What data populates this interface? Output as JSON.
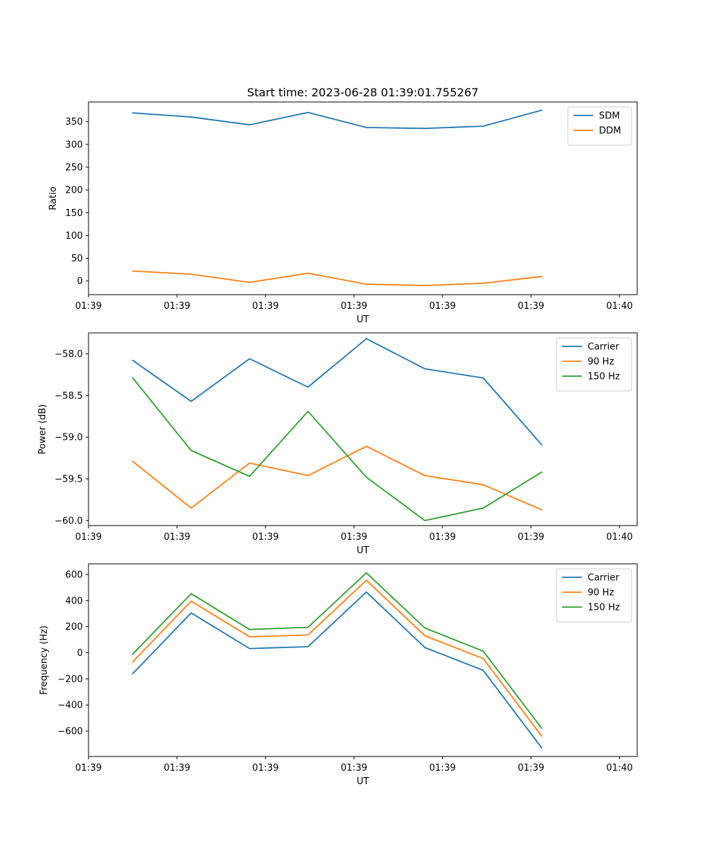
{
  "title": "Start time: 2023-06-28 01:39:01.755267",
  "colors": {
    "blue": "#1f77b4",
    "orange": "#ff7f0e",
    "green": "#2ca02c"
  },
  "chart_data": [
    {
      "type": "line",
      "xlabel": "UT",
      "ylabel": "Ratio",
      "x_tick_labels": [
        "01:39",
        "01:39",
        "01:39",
        "01:39",
        "01:39",
        "01:39",
        "01:40"
      ],
      "xlim": [
        0,
        6.2
      ],
      "ylim": [
        -30,
        393
      ],
      "y_ticks": [
        0,
        50,
        100,
        150,
        200,
        250,
        300,
        350
      ],
      "y_tick_labels": [
        "0",
        "50",
        "100",
        "150",
        "200",
        "250",
        "300",
        "350"
      ],
      "legend": "top-right",
      "x": [
        0.5,
        1.16,
        1.82,
        2.48,
        3.14,
        3.8,
        4.46,
        5.12
      ],
      "series": [
        {
          "name": "SDM",
          "color": "#1f77b4",
          "values": [
            369,
            360,
            343,
            370,
            337,
            335,
            340,
            375
          ]
        },
        {
          "name": "DDM",
          "color": "#ff7f0e",
          "values": [
            22,
            15,
            -3,
            17,
            -7,
            -10,
            -5,
            10
          ]
        }
      ]
    },
    {
      "type": "line",
      "xlabel": "UT",
      "ylabel": "Power (dB)",
      "x_tick_labels": [
        "01:39",
        "01:39",
        "01:39",
        "01:39",
        "01:39",
        "01:39",
        "01:40"
      ],
      "xlim": [
        0,
        6.2
      ],
      "ylim": [
        -60.06,
        -57.75
      ],
      "y_ticks": [
        -60.0,
        -59.5,
        -59.0,
        -58.5,
        -58.0
      ],
      "y_tick_labels": [
        "−60.0",
        "−59.5",
        "−59.0",
        "−58.5",
        "−58.0"
      ],
      "legend": "top-right",
      "x": [
        0.5,
        1.16,
        1.82,
        2.48,
        3.14,
        3.8,
        4.46,
        5.12
      ],
      "series": [
        {
          "name": "Carrier",
          "color": "#1f77b4",
          "values": [
            -58.08,
            -58.57,
            -58.06,
            -58.4,
            -57.82,
            -58.18,
            -58.29,
            -59.09
          ]
        },
        {
          "name": "90 Hz",
          "color": "#ff7f0e",
          "values": [
            -59.29,
            -59.85,
            -59.31,
            -59.46,
            -59.11,
            -59.46,
            -59.57,
            -59.87
          ]
        },
        {
          "name": "150 Hz",
          "color": "#2ca02c",
          "values": [
            -58.29,
            -59.16,
            -59.47,
            -58.69,
            -59.48,
            -60.0,
            -59.85,
            -59.42
          ]
        }
      ]
    },
    {
      "type": "line",
      "xlabel": "UT",
      "ylabel": "Frequency (Hz)",
      "x_tick_labels": [
        "01:39",
        "01:39",
        "01:39",
        "01:39",
        "01:39",
        "01:39",
        "01:40"
      ],
      "xlim": [
        0,
        6.2
      ],
      "ylim": [
        -795,
        681
      ],
      "y_ticks": [
        -600,
        -400,
        -200,
        0,
        200,
        400,
        600
      ],
      "y_tick_labels": [
        "−600",
        "−400",
        "−200",
        "0",
        "200",
        "400",
        "600"
      ],
      "legend": "top-right",
      "x": [
        0.5,
        1.16,
        1.82,
        2.48,
        3.14,
        3.8,
        4.46,
        5.12
      ],
      "series": [
        {
          "name": "Carrier",
          "color": "#1f77b4",
          "values": [
            -160,
            305,
            32,
            46,
            465,
            40,
            -135,
            -728
          ]
        },
        {
          "name": "90 Hz",
          "color": "#ff7f0e",
          "values": [
            -70,
            395,
            122,
            136,
            555,
            130,
            -45,
            -638
          ]
        },
        {
          "name": "150 Hz",
          "color": "#2ca02c",
          "values": [
            -10,
            452,
            178,
            195,
            612,
            190,
            12,
            -578
          ]
        }
      ]
    }
  ]
}
